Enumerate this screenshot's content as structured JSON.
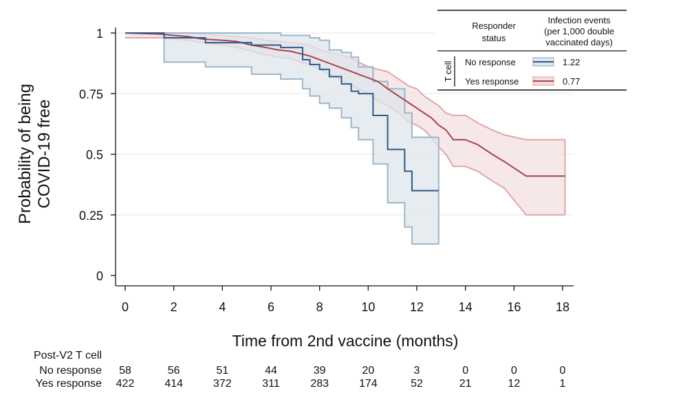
{
  "chart_data": {
    "type": "line",
    "subtype": "kaplan-meier",
    "title": "",
    "xlabel": "Time from 2nd vaccine (months)",
    "ylabel_lines": [
      "Probability of being",
      "COVID-19 free"
    ],
    "xlim": [
      0,
      18
    ],
    "ylim": [
      0,
      1
    ],
    "xticks": [
      0,
      2,
      4,
      6,
      8,
      10,
      12,
      14,
      16,
      18
    ],
    "yticks": [
      0,
      0.25,
      0.5,
      0.75,
      1
    ],
    "ytick_labels": [
      "0",
      "0.25",
      "0.5",
      "0.75",
      "1"
    ],
    "grid": "horizontal",
    "legend": {
      "placement": "top-right",
      "col1_header": [
        "Responder",
        "status"
      ],
      "col2_header": [
        "Infection events",
        "(per 1,000 double",
        "vaccinated days)"
      ],
      "group_label": "T cell",
      "rows": [
        {
          "label": "No response",
          "value": "1.22"
        },
        {
          "label": "Yes response",
          "value": "0.77"
        }
      ]
    },
    "series": [
      {
        "name": "No response",
        "color": "#2b5a86",
        "band_fill": "#dfe6ec",
        "band_edge": "#9cb6c9",
        "x": [
          0,
          1.6,
          1.6,
          3.3,
          3.3,
          5.2,
          5.2,
          6.4,
          6.4,
          7.3,
          7.3,
          7.6,
          7.6,
          8.0,
          8.0,
          8.4,
          8.4,
          8.9,
          8.9,
          9.3,
          9.3,
          9.6,
          9.6,
          10.2,
          10.2,
          10.8,
          10.8,
          11.5,
          11.5,
          11.8,
          11.8,
          12.9
        ],
        "y": [
          1,
          1,
          0.98,
          0.98,
          0.96,
          0.96,
          0.95,
          0.95,
          0.94,
          0.94,
          0.89,
          0.89,
          0.87,
          0.87,
          0.85,
          0.85,
          0.82,
          0.82,
          0.79,
          0.79,
          0.76,
          0.76,
          0.75,
          0.75,
          0.66,
          0.66,
          0.52,
          0.52,
          0.43,
          0.43,
          0.35,
          0.35
        ],
        "lower": [
          1,
          1,
          0.88,
          0.88,
          0.86,
          0.86,
          0.83,
          0.83,
          0.81,
          0.81,
          0.77,
          0.77,
          0.74,
          0.74,
          0.71,
          0.71,
          0.69,
          0.69,
          0.65,
          0.65,
          0.61,
          0.61,
          0.56,
          0.56,
          0.46,
          0.46,
          0.3,
          0.3,
          0.2,
          0.2,
          0.13,
          0.13
        ],
        "upper": [
          1,
          1,
          1,
          1,
          1,
          1,
          1,
          1,
          0.99,
          0.99,
          0.99,
          0.99,
          0.98,
          0.98,
          0.97,
          0.97,
          0.93,
          0.93,
          0.92,
          0.92,
          0.9,
          0.9,
          0.86,
          0.86,
          0.8,
          0.8,
          0.77,
          0.77,
          0.67,
          0.67,
          0.57,
          0.57
        ]
      },
      {
        "name": "Yes response",
        "color": "#a8424c",
        "band_fill": "#f3dfe1",
        "band_edge": "#e0a6ac",
        "x": [
          0,
          1.5,
          2.0,
          2.6,
          3.2,
          4.0,
          4.6,
          5.2,
          5.8,
          6.3,
          6.8,
          7.2,
          7.6,
          8.0,
          8.4,
          8.8,
          9.2,
          9.6,
          10.0,
          10.4,
          10.8,
          11.1,
          11.4,
          11.7,
          12.0,
          12.3,
          12.6,
          12.9,
          13.2,
          13.5,
          14.0,
          14.5,
          15.1,
          15.6,
          16.5,
          18.1
        ],
        "y": [
          1,
          0.995,
          0.99,
          0.985,
          0.975,
          0.97,
          0.965,
          0.95,
          0.94,
          0.93,
          0.925,
          0.915,
          0.905,
          0.89,
          0.875,
          0.86,
          0.845,
          0.83,
          0.815,
          0.8,
          0.77,
          0.75,
          0.73,
          0.71,
          0.69,
          0.67,
          0.65,
          0.62,
          0.6,
          0.56,
          0.56,
          0.54,
          0.5,
          0.47,
          0.41,
          0.41
        ],
        "lower": [
          0.98,
          0.98,
          0.975,
          0.97,
          0.96,
          0.95,
          0.94,
          0.925,
          0.91,
          0.9,
          0.895,
          0.88,
          0.87,
          0.85,
          0.83,
          0.81,
          0.79,
          0.77,
          0.75,
          0.72,
          0.7,
          0.68,
          0.66,
          0.63,
          0.62,
          0.6,
          0.57,
          0.53,
          0.5,
          0.45,
          0.45,
          0.43,
          0.39,
          0.36,
          0.25,
          0.25
        ],
        "upper": [
          1,
          1,
          1,
          1,
          0.995,
          0.99,
          0.985,
          0.98,
          0.97,
          0.965,
          0.96,
          0.955,
          0.95,
          0.93,
          0.92,
          0.91,
          0.9,
          0.88,
          0.86,
          0.85,
          0.84,
          0.82,
          0.8,
          0.78,
          0.77,
          0.74,
          0.72,
          0.7,
          0.67,
          0.66,
          0.66,
          0.63,
          0.6,
          0.58,
          0.56,
          0.56
        ]
      }
    ],
    "at_risk": {
      "title": "Post-V2 T cell",
      "rows": [
        {
          "label": "No response",
          "values": [
            58,
            56,
            51,
            44,
            39,
            20,
            3,
            0,
            0,
            0
          ]
        },
        {
          "label": "Yes response",
          "values": [
            422,
            414,
            372,
            311,
            283,
            174,
            52,
            21,
            12,
            1
          ]
        }
      ]
    }
  }
}
